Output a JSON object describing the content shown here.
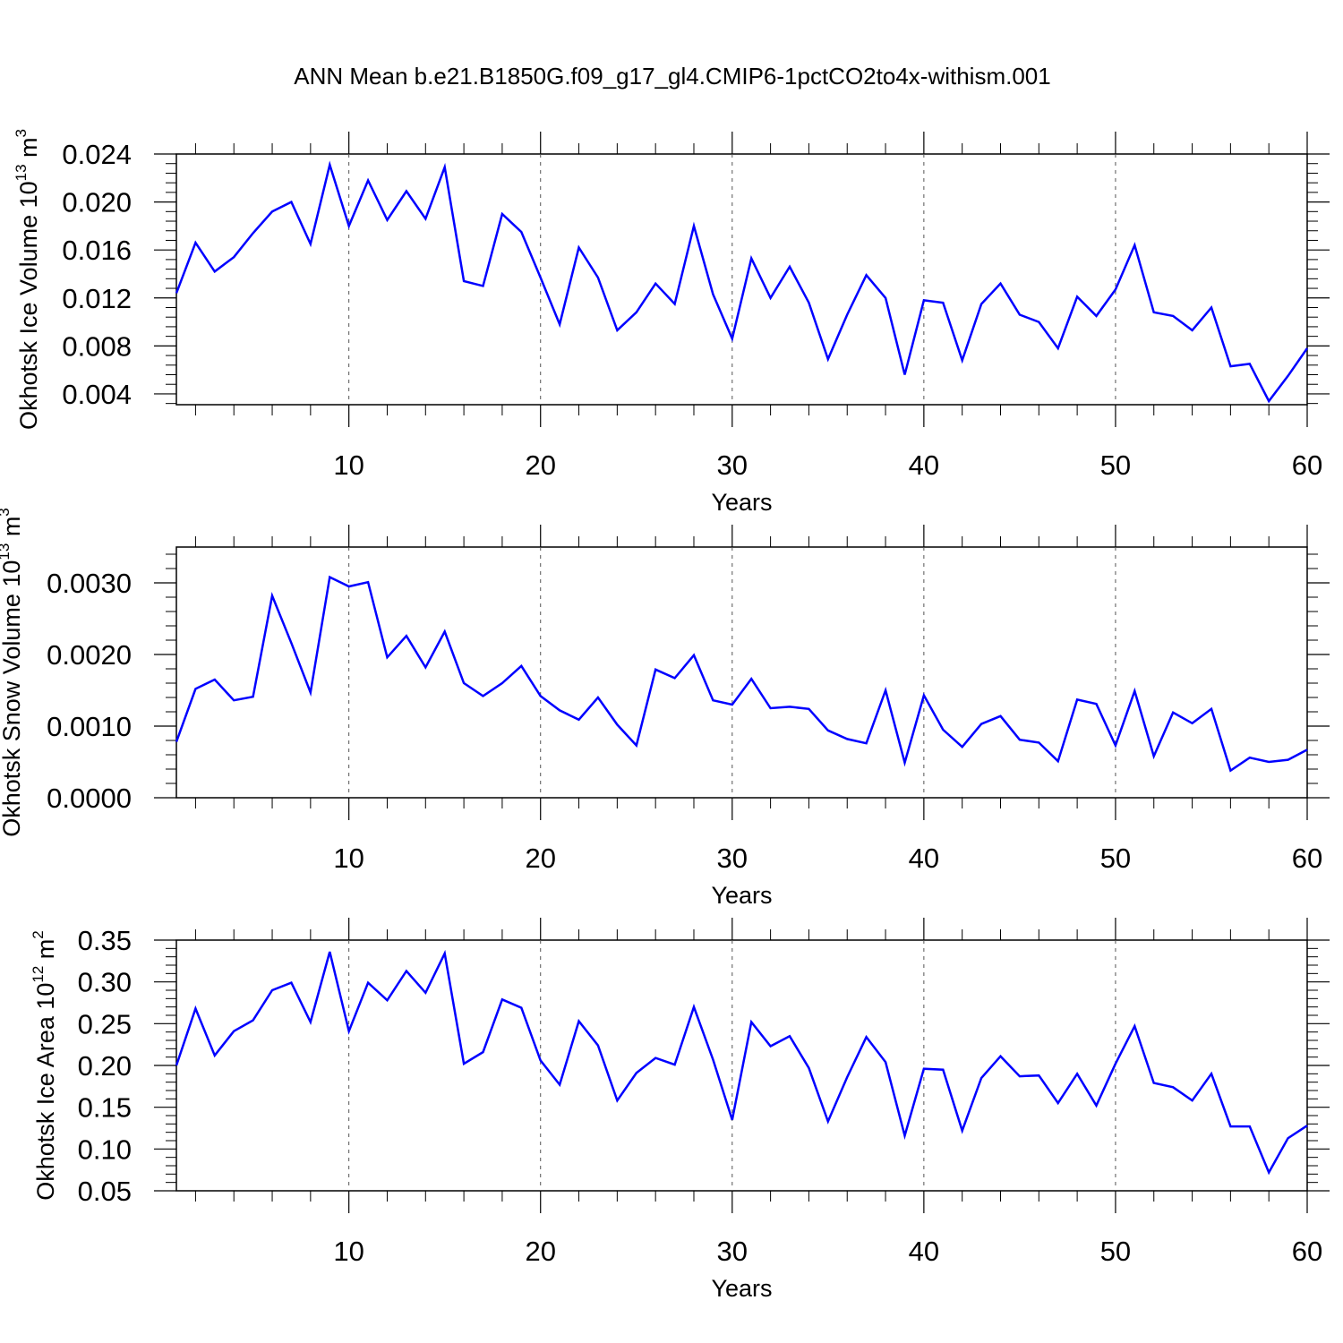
{
  "title": "ANN Mean b.e21.B1850G.f09_g17_gl4.CMIP6-1pctCO2to4x-withism.001",
  "colors": {
    "line": "#0000ff",
    "axes": "#000000",
    "grid": "#000000",
    "background": "#ffffff"
  },
  "chart_data": [
    {
      "type": "line",
      "xlabel": "Years",
      "ylabel": {
        "text": "Okhotsk Ice Volume 10",
        "exponent": "13",
        "unit": "m",
        "unit_exponent": "3"
      },
      "xlim": [
        1,
        60
      ],
      "ylim": [
        0.0031,
        0.024
      ],
      "xticks": [
        10,
        20,
        30,
        40,
        50,
        60
      ],
      "xtick_labels": [
        "10",
        "20",
        "30",
        "40",
        "50",
        "60"
      ],
      "yticks": [
        0.004,
        0.008,
        0.012,
        0.016,
        0.02,
        0.024
      ],
      "ytick_labels": [
        "0.004",
        "0.008",
        "0.012",
        "0.016",
        "0.020",
        "0.024"
      ],
      "grid": "vertical dashed at major x ticks",
      "x": [
        1,
        2,
        3,
        4,
        5,
        6,
        7,
        8,
        9,
        10,
        11,
        12,
        13,
        14,
        15,
        16,
        17,
        18,
        19,
        20,
        21,
        22,
        23,
        24,
        25,
        26,
        27,
        28,
        29,
        30,
        31,
        32,
        33,
        34,
        35,
        36,
        37,
        38,
        39,
        40,
        41,
        42,
        43,
        44,
        45,
        46,
        47,
        48,
        49,
        50,
        51,
        52,
        53,
        54,
        55,
        56,
        57,
        58,
        59,
        60
      ],
      "series": [
        {
          "values": [
            0.0124,
            0.0166,
            0.0142,
            0.0154,
            0.0174,
            0.0192,
            0.02,
            0.0165,
            0.0231,
            0.018,
            0.0218,
            0.0185,
            0.0209,
            0.0186,
            0.0229,
            0.0134,
            0.013,
            0.019,
            0.0175,
            0.0137,
            0.0098,
            0.0162,
            0.0137,
            0.0093,
            0.0108,
            0.0132,
            0.0115,
            0.018,
            0.0123,
            0.0086,
            0.0153,
            0.012,
            0.0146,
            0.0116,
            0.0069,
            0.0106,
            0.0139,
            0.012,
            0.0056,
            0.0118,
            0.0116,
            0.0068,
            0.0115,
            0.0132,
            0.0106,
            0.01,
            0.0078,
            0.0121,
            0.0105,
            0.0127,
            0.0164,
            0.0108,
            0.0105,
            0.0093,
            0.0112,
            0.0063,
            0.0065,
            0.0034,
            0.0055,
            0.0078
          ]
        }
      ]
    },
    {
      "type": "line",
      "xlabel": "Years",
      "ylabel": {
        "text": "Okhotsk Snow Volume 10",
        "exponent": "13",
        "unit": "m",
        "unit_exponent": "3"
      },
      "xlim": [
        1,
        60
      ],
      "ylim": [
        0,
        0.0035
      ],
      "xticks": [
        10,
        20,
        30,
        40,
        50,
        60
      ],
      "xtick_labels": [
        "10",
        "20",
        "30",
        "40",
        "50",
        "60"
      ],
      "yticks": [
        0,
        0.001,
        0.002,
        0.003
      ],
      "ytick_labels": [
        "0.0000",
        "0.0010",
        "0.0020",
        "0.0030"
      ],
      "grid": "vertical dashed at major x ticks",
      "x": [
        1,
        2,
        3,
        4,
        5,
        6,
        7,
        8,
        9,
        10,
        11,
        12,
        13,
        14,
        15,
        16,
        17,
        18,
        19,
        20,
        21,
        22,
        23,
        24,
        25,
        26,
        27,
        28,
        29,
        30,
        31,
        32,
        33,
        34,
        35,
        36,
        37,
        38,
        39,
        40,
        41,
        42,
        43,
        44,
        45,
        46,
        47,
        48,
        49,
        50,
        51,
        52,
        53,
        54,
        55,
        56,
        57,
        58,
        59,
        60
      ],
      "series": [
        {
          "values": [
            0.00078,
            0.00152,
            0.00165,
            0.00136,
            0.00141,
            0.00282,
            0.00216,
            0.00147,
            0.00308,
            0.00295,
            0.00301,
            0.00196,
            0.00226,
            0.00182,
            0.00232,
            0.0016,
            0.00142,
            0.0016,
            0.00184,
            0.00142,
            0.00122,
            0.00109,
            0.0014,
            0.00102,
            0.00073,
            0.00179,
            0.00167,
            0.00199,
            0.00136,
            0.0013,
            0.00166,
            0.00125,
            0.00127,
            0.00124,
            0.00094,
            0.00082,
            0.00076,
            0.0015,
            0.00049,
            0.00143,
            0.00095,
            0.00071,
            0.00103,
            0.00114,
            0.00081,
            0.00077,
            0.00051,
            0.00137,
            0.00131,
            0.00073,
            0.00149,
            0.00058,
            0.00119,
            0.00104,
            0.00124,
            0.00038,
            0.00056,
            0.0005,
            0.00053,
            0.00067
          ]
        }
      ]
    },
    {
      "type": "line",
      "xlabel": "Years",
      "ylabel": {
        "text": "Okhotsk Ice Area 10",
        "exponent": "12",
        "unit": "m",
        "unit_exponent": "2"
      },
      "xlim": [
        1,
        60
      ],
      "ylim": [
        0.05,
        0.35
      ],
      "xticks": [
        10,
        20,
        30,
        40,
        50,
        60
      ],
      "xtick_labels": [
        "10",
        "20",
        "30",
        "40",
        "50",
        "60"
      ],
      "yticks": [
        0.05,
        0.1,
        0.15,
        0.2,
        0.25,
        0.3,
        0.35
      ],
      "ytick_labels": [
        "0.05",
        "0.10",
        "0.15",
        "0.20",
        "0.25",
        "0.30",
        "0.35"
      ],
      "grid": "vertical dashed at major x ticks",
      "x": [
        1,
        2,
        3,
        4,
        5,
        6,
        7,
        8,
        9,
        10,
        11,
        12,
        13,
        14,
        15,
        16,
        17,
        18,
        19,
        20,
        21,
        22,
        23,
        24,
        25,
        26,
        27,
        28,
        29,
        30,
        31,
        32,
        33,
        34,
        35,
        36,
        37,
        38,
        39,
        40,
        41,
        42,
        43,
        44,
        45,
        46,
        47,
        48,
        49,
        50,
        51,
        52,
        53,
        54,
        55,
        56,
        57,
        58,
        59,
        60
      ],
      "series": [
        {
          "values": [
            0.2,
            0.268,
            0.212,
            0.241,
            0.254,
            0.29,
            0.299,
            0.252,
            0.336,
            0.241,
            0.299,
            0.278,
            0.313,
            0.287,
            0.334,
            0.202,
            0.216,
            0.279,
            0.269,
            0.206,
            0.177,
            0.253,
            0.224,
            0.158,
            0.191,
            0.209,
            0.201,
            0.27,
            0.207,
            0.135,
            0.252,
            0.223,
            0.235,
            0.197,
            0.133,
            0.186,
            0.234,
            0.204,
            0.116,
            0.196,
            0.195,
            0.122,
            0.185,
            0.211,
            0.187,
            0.188,
            0.155,
            0.19,
            0.152,
            0.202,
            0.247,
            0.179,
            0.174,
            0.158,
            0.19,
            0.127,
            0.127,
            0.072,
            0.113,
            0.128
          ]
        }
      ]
    }
  ]
}
